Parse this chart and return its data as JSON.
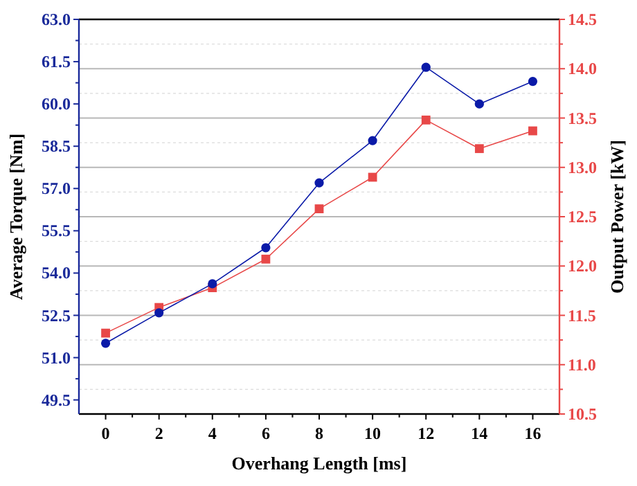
{
  "chart_data": {
    "type": "line",
    "xlabel": "Overhang Length [ms]",
    "ylabel": "Average Torque [Nm]",
    "y2label": "Output Power [kW]",
    "x": [
      0,
      2,
      4,
      6,
      8,
      10,
      12,
      14,
      16
    ],
    "xlim": [
      -1,
      17
    ],
    "xticks": [
      0,
      {
        "value": 1,
        "label": null
      },
      2,
      {
        "value": 3,
        "label": null
      },
      4,
      {
        "value": 5,
        "label": null
      },
      6,
      {
        "value": 7,
        "label": null
      },
      8,
      {
        "value": 9,
        "label": null
      },
      10,
      {
        "value": 11,
        "label": null
      },
      12,
      {
        "value": 13,
        "label": null
      },
      14,
      {
        "value": 15,
        "label": null
      },
      16
    ],
    "ylim": [
      49,
      63
    ],
    "yticks": [
      {
        "value": 49.5,
        "label": "49.5"
      },
      {
        "value": 50.25,
        "label": null
      },
      {
        "value": 51,
        "label": "51.0"
      },
      {
        "value": 51.75,
        "label": null
      },
      {
        "value": 52.5,
        "label": "52.5"
      },
      {
        "value": 53.25,
        "label": null
      },
      {
        "value": 54,
        "label": "54.0"
      },
      {
        "value": 54.75,
        "label": null
      },
      {
        "value": 55.5,
        "label": "55.5"
      },
      {
        "value": 56.25,
        "label": null
      },
      {
        "value": 57,
        "label": "57.0"
      },
      {
        "value": 57.75,
        "label": null
      },
      {
        "value": 58.5,
        "label": "58.5"
      },
      {
        "value": 59.25,
        "label": null
      },
      {
        "value": 60,
        "label": "60.0"
      },
      {
        "value": 60.75,
        "label": null
      },
      {
        "value": 61.5,
        "label": "61.5"
      },
      {
        "value": 62.25,
        "label": null
      },
      {
        "value": 63,
        "label": "63.0"
      }
    ],
    "y2lim": [
      10.5,
      14.5
    ],
    "y2ticks": [
      {
        "value": 10.5,
        "label": "10.5"
      },
      {
        "value": 10.75,
        "label": null
      },
      {
        "value": 11,
        "label": "11.0"
      },
      {
        "value": 11.25,
        "label": null
      },
      {
        "value": 11.5,
        "label": "11.5"
      },
      {
        "value": 11.75,
        "label": null
      },
      {
        "value": 12,
        "label": "12.0"
      },
      {
        "value": 12.25,
        "label": null
      },
      {
        "value": 12.5,
        "label": "12.5"
      },
      {
        "value": 12.75,
        "label": null
      },
      {
        "value": 13,
        "label": "13.0"
      },
      {
        "value": 13.25,
        "label": null
      },
      {
        "value": 13.5,
        "label": "13.5"
      },
      {
        "value": 13.75,
        "label": null
      },
      {
        "value": 14,
        "label": "14.0"
      },
      {
        "value": 14.25,
        "label": null
      },
      {
        "value": 14.5,
        "label": "14.5"
      }
    ],
    "grid": "y2",
    "series": [
      {
        "color": "#0a1aa8",
        "marker": "circle",
        "values": [
          51.51,
          52.59,
          53.62,
          54.9,
          57.2,
          58.7,
          61.3,
          60.0,
          60.8
        ]
      },
      {
        "color": "#e84848",
        "marker": "square",
        "axis": "y2",
        "values": [
          11.32,
          11.58,
          11.78,
          12.07,
          12.58,
          12.9,
          13.48,
          13.19,
          13.37
        ]
      }
    ]
  }
}
